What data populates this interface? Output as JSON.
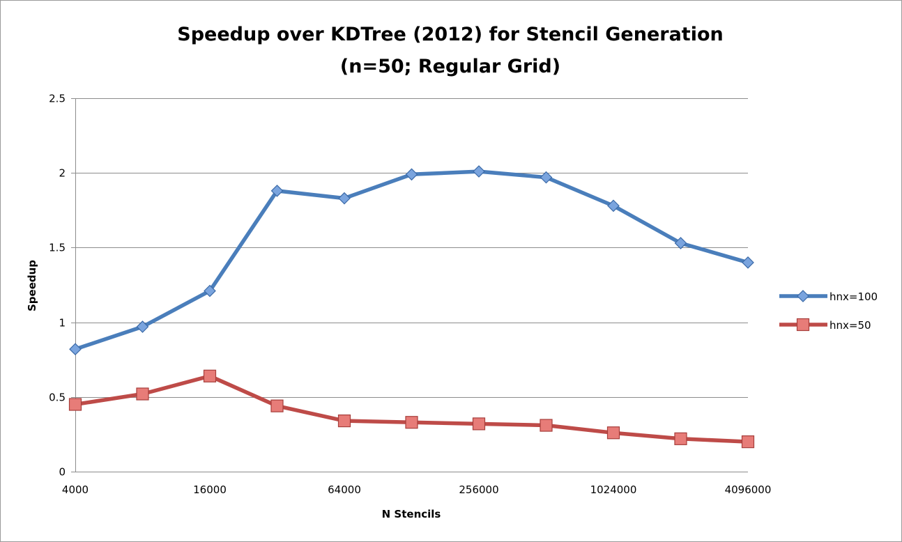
{
  "chart_data": {
    "type": "line",
    "title_lines": [
      "Speedup over KDTree (2012) for Stencil Generation",
      "(n=50; Regular Grid)"
    ],
    "xlabel": "N Stencils",
    "ylabel": "Speedup",
    "x_tick_labels": [
      "4000",
      "16000",
      "64000",
      "256000",
      "1024000",
      "4096000"
    ],
    "y_tick_labels": [
      "0",
      "0.5",
      "1",
      "1.5",
      "2",
      "2.5"
    ],
    "ylim": [
      0,
      2.5
    ],
    "x": [
      4000,
      8000,
      16000,
      32000,
      64000,
      128000,
      256000,
      512000,
      1024000,
      2048000,
      4096000
    ],
    "x_scale": "log2",
    "grid": "horizontal",
    "legend_position": "right",
    "series": [
      {
        "name": "hnx=100",
        "color": "#4a7ebb",
        "marker": "diamond",
        "values": [
          0.82,
          0.97,
          1.21,
          1.88,
          1.83,
          1.99,
          2.01,
          1.97,
          1.78,
          1.53,
          1.4
        ]
      },
      {
        "name": "hnx=50",
        "color": "#be4b48",
        "marker": "square",
        "values": [
          0.45,
          0.52,
          0.64,
          0.44,
          0.34,
          0.33,
          0.32,
          0.31,
          0.26,
          0.22,
          0.2
        ]
      }
    ]
  }
}
